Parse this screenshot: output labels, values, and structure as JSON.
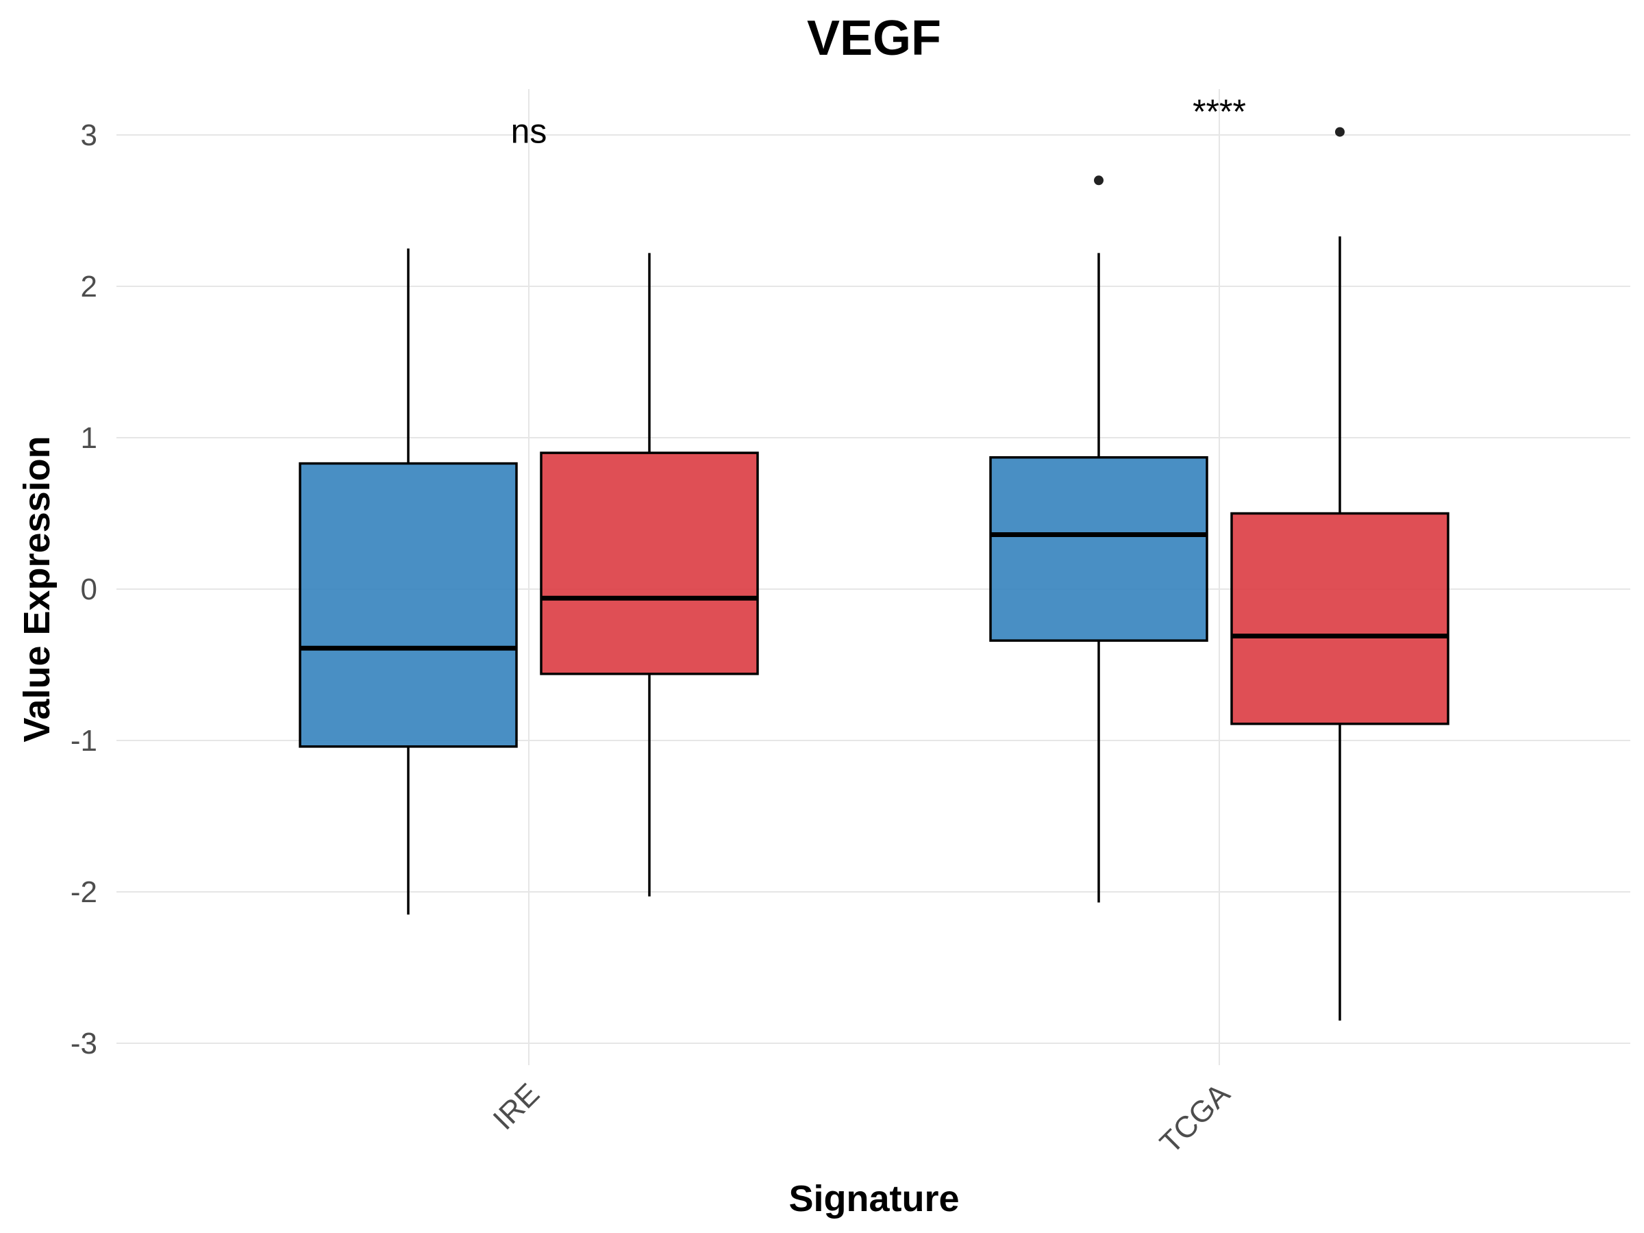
{
  "chart_data": {
    "type": "boxplot",
    "title": "VEGF",
    "xlabel": "Signature",
    "ylabel": "Value Expression",
    "ylim": [
      -3.15,
      3.3
    ],
    "yticks": [
      -3,
      -2,
      -1,
      0,
      1,
      2,
      3
    ],
    "grid": true,
    "legend": "none",
    "categories": [
      "IRE",
      "TCGA"
    ],
    "series": [
      {
        "color": "#3a86bf",
        "boxes": [
          {
            "category": "IRE",
            "whisker_low": -2.15,
            "q1": -1.04,
            "median": -0.39,
            "q3": 0.83,
            "whisker_high": 2.25,
            "outliers": []
          },
          {
            "category": "TCGA",
            "whisker_low": -2.07,
            "q1": -0.34,
            "median": 0.36,
            "q3": 0.87,
            "whisker_high": 2.22,
            "outliers": [
              2.7
            ]
          }
        ]
      },
      {
        "color": "#dc4046",
        "boxes": [
          {
            "category": "IRE",
            "whisker_low": -2.03,
            "q1": -0.56,
            "median": -0.06,
            "q3": 0.9,
            "whisker_high": 2.22,
            "outliers": []
          },
          {
            "category": "TCGA",
            "whisker_low": -2.85,
            "q1": -0.89,
            "median": -0.31,
            "q3": 0.5,
            "whisker_high": 2.33,
            "outliers": [
              3.02
            ]
          }
        ]
      }
    ],
    "annotations": [
      {
        "category": "IRE",
        "text": "ns",
        "y": 3.02
      },
      {
        "category": "TCGA",
        "text": "****",
        "y": 3.15
      }
    ]
  }
}
